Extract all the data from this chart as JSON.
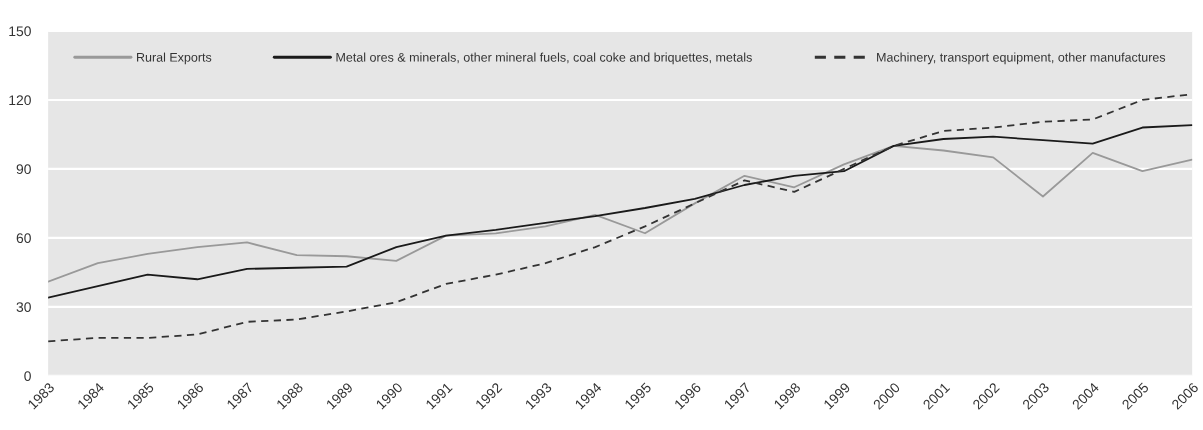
{
  "chart_data": {
    "type": "line",
    "categories": [
      "1983",
      "1984",
      "1985",
      "1986",
      "1987",
      "1988",
      "1989",
      "1990",
      "1991",
      "1992",
      "1993",
      "1994",
      "1995",
      "1996",
      "1997",
      "1998",
      "1999",
      "2000",
      "2001",
      "2002",
      "2003",
      "2004",
      "2005",
      "2006"
    ],
    "series": [
      {
        "name": "Rural Exports",
        "color": "#999999",
        "line_style": "solid",
        "values": [
          41,
          49,
          53,
          56,
          58,
          52.5,
          52,
          50,
          61,
          62,
          65,
          70,
          62,
          75,
          87,
          82,
          92,
          100,
          98,
          95,
          78,
          97,
          89,
          94
        ]
      },
      {
        "name": "Metal ores & minerals, other mineral fuels, coal coke and briquettes, metals",
        "color": "#1a1a1a",
        "line_style": "solid",
        "values": [
          34,
          39,
          44,
          42,
          46.5,
          47,
          47.5,
          56,
          61,
          63.5,
          66.5,
          69.5,
          73,
          77,
          83,
          87,
          89,
          100,
          103,
          104,
          102.5,
          101,
          108,
          109
        ]
      },
      {
        "name": "Machinery, transport equipment, other manufactures",
        "color": "#333333",
        "line_style": "dashed",
        "values": [
          15,
          16.5,
          16.5,
          18,
          23.5,
          24.5,
          28,
          32,
          40,
          44,
          49,
          56,
          65,
          75,
          85,
          80,
          90,
          100,
          106.5,
          108,
          110.5,
          111.5,
          120,
          122.5
        ]
      }
    ],
    "ylim": [
      0,
      150
    ],
    "yticks": [
      0,
      30,
      60,
      90,
      120,
      150
    ],
    "grid": "y",
    "legend": "top"
  }
}
